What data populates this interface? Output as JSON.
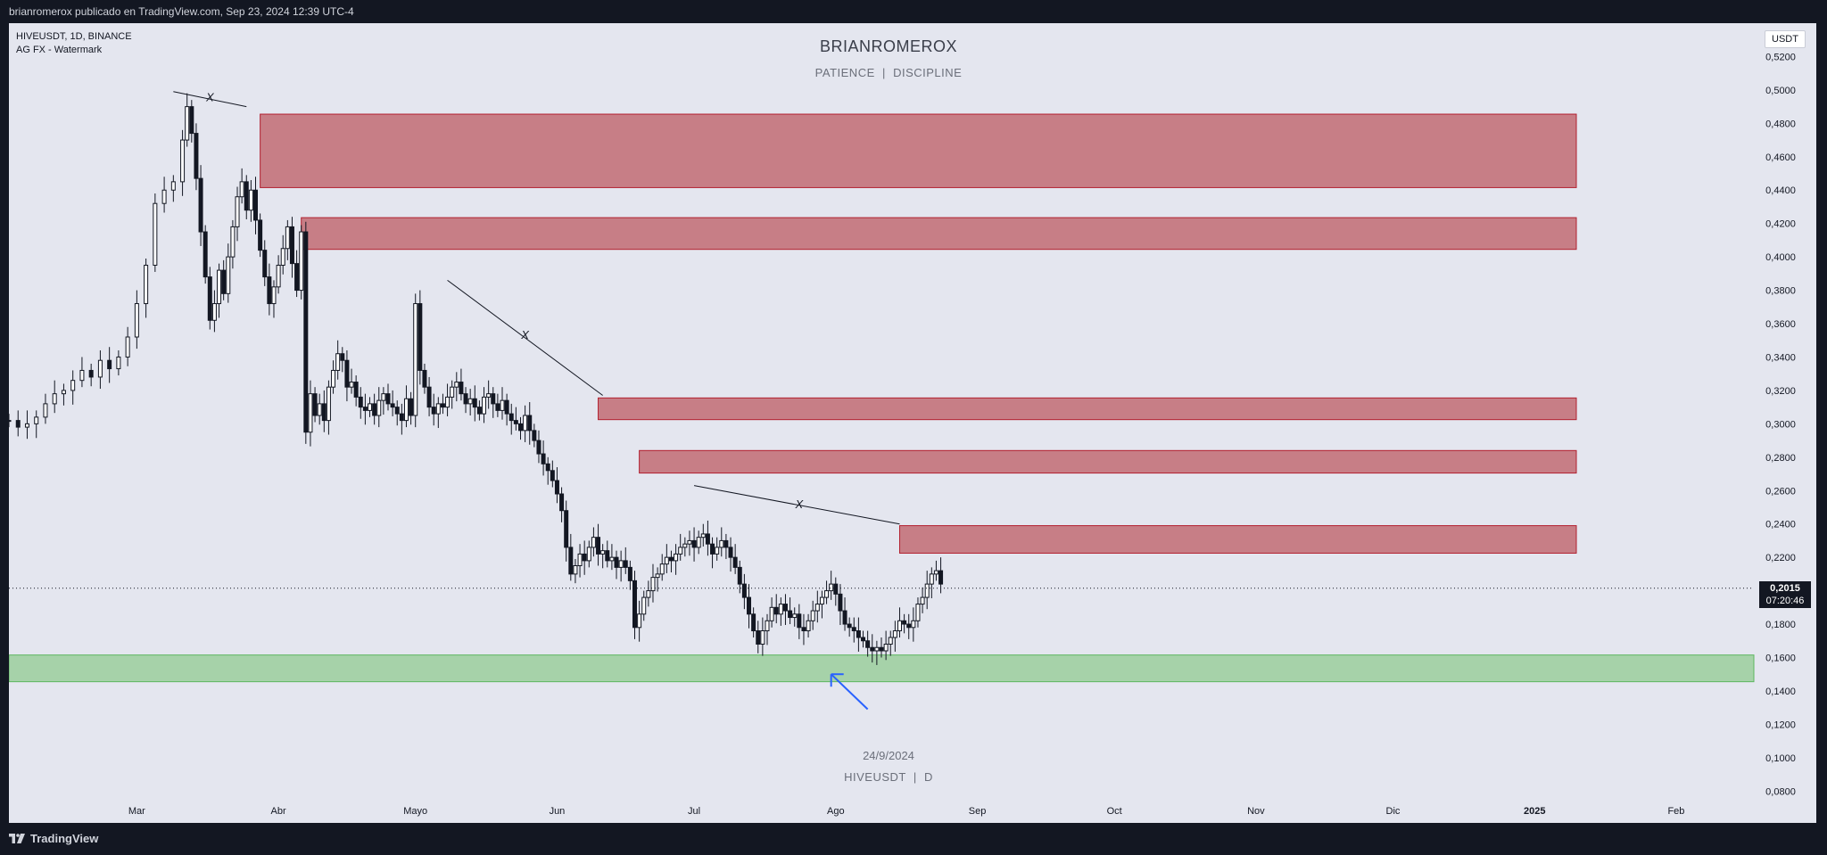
{
  "header": {
    "published_text": "brianromerox publicado en TradingView.com, Sep 23, 2024 12:39 UTC-4"
  },
  "symbol": {
    "line1": "HIVEUSDT, 1D, BINANCE",
    "line2": "AG FX - Watermark"
  },
  "watermark": {
    "title": "BRIANROMEROX",
    "subtitle": "PATIENCE  |  DISCIPLINE",
    "date": "24/9/2024",
    "symbol_line": "HIVEUSDT  |  D"
  },
  "currency": "USDT",
  "last_price": {
    "value": "0,2015",
    "countdown": "07:20:46",
    "price": 0.2015
  },
  "footer": {
    "brand": "TradingView"
  },
  "colors": {
    "resistance_fill": "#c77e86",
    "resistance_stroke": "#b2202f",
    "support_fill": "#a6d2a9",
    "support_stroke": "#5cb65f",
    "candle": "#131722",
    "arrow": "#2962ff"
  },
  "chart_data": {
    "type": "candlestick",
    "symbol": "HIVEUSDT",
    "timeframe": "1D",
    "exchange": "BINANCE",
    "ylim": [
      0.07,
      0.54
    ],
    "y_ticks": [
      {
        "v": 0.52,
        "label": "0,5200"
      },
      {
        "v": 0.5,
        "label": "0,5000"
      },
      {
        "v": 0.48,
        "label": "0,4800"
      },
      {
        "v": 0.46,
        "label": "0,4600"
      },
      {
        "v": 0.44,
        "label": "0,4400"
      },
      {
        "v": 0.42,
        "label": "0,4200"
      },
      {
        "v": 0.4,
        "label": "0,4000"
      },
      {
        "v": 0.38,
        "label": "0,3800"
      },
      {
        "v": 0.36,
        "label": "0,3600"
      },
      {
        "v": 0.34,
        "label": "0,3400"
      },
      {
        "v": 0.32,
        "label": "0,3200"
      },
      {
        "v": 0.3,
        "label": "0,3000"
      },
      {
        "v": 0.28,
        "label": "0,2800"
      },
      {
        "v": 0.26,
        "label": "0,2600"
      },
      {
        "v": 0.24,
        "label": "0,2400"
      },
      {
        "v": 0.22,
        "label": "0,2200"
      },
      {
        "v": 0.18,
        "label": "0,1800"
      },
      {
        "v": 0.16,
        "label": "0,1600"
      },
      {
        "v": 0.14,
        "label": "0,1400"
      },
      {
        "v": 0.12,
        "label": "0,1200"
      },
      {
        "v": 0.1,
        "label": "0,1000"
      },
      {
        "v": 0.08,
        "label": "0,0800"
      }
    ],
    "x_ticks": [
      {
        "day": 60,
        "label": "Mar"
      },
      {
        "day": 91,
        "label": "Abr"
      },
      {
        "day": 121,
        "label": "Mayo"
      },
      {
        "day": 152,
        "label": "Jun"
      },
      {
        "day": 182,
        "label": "Jul"
      },
      {
        "day": 213,
        "label": "Ago"
      },
      {
        "day": 244,
        "label": "Sep"
      },
      {
        "day": 274,
        "label": "Oct"
      },
      {
        "day": 305,
        "label": "Nov"
      },
      {
        "day": 335,
        "label": "Dic"
      },
      {
        "day": 366,
        "label": "2025"
      },
      {
        "day": 397,
        "label": "Feb"
      }
    ],
    "xlim": [
      32,
      414
    ],
    "closes": [
      [
        32,
        0.302
      ],
      [
        34,
        0.298
      ],
      [
        36,
        0.3
      ],
      [
        38,
        0.304
      ],
      [
        40,
        0.312
      ],
      [
        42,
        0.318
      ],
      [
        44,
        0.32
      ],
      [
        46,
        0.326
      ],
      [
        48,
        0.332
      ],
      [
        50,
        0.328
      ],
      [
        52,
        0.338
      ],
      [
        54,
        0.333
      ],
      [
        56,
        0.34
      ],
      [
        58,
        0.352
      ],
      [
        60,
        0.372
      ],
      [
        62,
        0.395
      ],
      [
        64,
        0.432
      ],
      [
        66,
        0.44
      ],
      [
        68,
        0.445
      ],
      [
        70,
        0.47
      ],
      [
        71,
        0.49
      ],
      [
        72,
        0.474
      ],
      [
        73,
        0.447
      ],
      [
        74,
        0.415
      ],
      [
        75,
        0.388
      ],
      [
        76,
        0.362
      ],
      [
        77,
        0.372
      ],
      [
        78,
        0.392
      ],
      [
        79,
        0.378
      ],
      [
        80,
        0.4
      ],
      [
        81,
        0.418
      ],
      [
        82,
        0.436
      ],
      [
        83,
        0.445
      ],
      [
        84,
        0.428
      ],
      [
        85,
        0.44
      ],
      [
        86,
        0.422
      ],
      [
        87,
        0.404
      ],
      [
        88,
        0.388
      ],
      [
        89,
        0.372
      ],
      [
        90,
        0.382
      ],
      [
        91,
        0.395
      ],
      [
        92,
        0.405
      ],
      [
        93,
        0.418
      ],
      [
        94,
        0.396
      ],
      [
        95,
        0.38
      ],
      [
        96,
        0.415
      ],
      [
        97,
        0.295
      ],
      [
        98,
        0.318
      ],
      [
        99,
        0.305
      ],
      [
        100,
        0.312
      ],
      [
        101,
        0.302
      ],
      [
        102,
        0.322
      ],
      [
        103,
        0.332
      ],
      [
        104,
        0.342
      ],
      [
        105,
        0.338
      ],
      [
        106,
        0.322
      ],
      [
        107,
        0.325
      ],
      [
        108,
        0.316
      ],
      [
        109,
        0.31
      ],
      [
        110,
        0.308
      ],
      [
        111,
        0.312
      ],
      [
        112,
        0.305
      ],
      [
        113,
        0.314
      ],
      [
        114,
        0.318
      ],
      [
        115,
        0.312
      ],
      [
        116,
        0.31
      ],
      [
        117,
        0.306
      ],
      [
        118,
        0.302
      ],
      [
        119,
        0.315
      ],
      [
        120,
        0.305
      ],
      [
        121,
        0.372
      ],
      [
        122,
        0.332
      ],
      [
        123,
        0.322
      ],
      [
        124,
        0.31
      ],
      [
        125,
        0.306
      ],
      [
        126,
        0.312
      ],
      [
        127,
        0.31
      ],
      [
        128,
        0.316
      ],
      [
        129,
        0.322
      ],
      [
        130,
        0.325
      ],
      [
        131,
        0.318
      ],
      [
        132,
        0.312
      ],
      [
        133,
        0.315
      ],
      [
        134,
        0.31
      ],
      [
        135,
        0.306
      ],
      [
        136,
        0.316
      ],
      [
        137,
        0.318
      ],
      [
        138,
        0.312
      ],
      [
        139,
        0.308
      ],
      [
        140,
        0.314
      ],
      [
        141,
        0.306
      ],
      [
        142,
        0.302
      ],
      [
        143,
        0.3
      ],
      [
        144,
        0.296
      ],
      [
        145,
        0.305
      ],
      [
        146,
        0.296
      ],
      [
        147,
        0.29
      ],
      [
        148,
        0.282
      ],
      [
        149,
        0.276
      ],
      [
        150,
        0.272
      ],
      [
        151,
        0.266
      ],
      [
        152,
        0.258
      ],
      [
        153,
        0.248
      ],
      [
        154,
        0.226
      ],
      [
        155,
        0.21
      ],
      [
        156,
        0.215
      ],
      [
        157,
        0.222
      ],
      [
        158,
        0.218
      ],
      [
        159,
        0.226
      ],
      [
        160,
        0.232
      ],
      [
        161,
        0.222
      ],
      [
        162,
        0.224
      ],
      [
        163,
        0.218
      ],
      [
        164,
        0.22
      ],
      [
        165,
        0.214
      ],
      [
        166,
        0.218
      ],
      [
        167,
        0.214
      ],
      [
        168,
        0.206
      ],
      [
        169,
        0.178
      ],
      [
        170,
        0.186
      ],
      [
        171,
        0.196
      ],
      [
        172,
        0.2
      ],
      [
        173,
        0.208
      ],
      [
        174,
        0.21
      ],
      [
        175,
        0.216
      ],
      [
        176,
        0.22
      ],
      [
        177,
        0.218
      ],
      [
        178,
        0.222
      ],
      [
        179,
        0.226
      ],
      [
        180,
        0.228
      ],
      [
        181,
        0.23
      ],
      [
        182,
        0.226
      ],
      [
        183,
        0.232
      ],
      [
        184,
        0.234
      ],
      [
        185,
        0.228
      ],
      [
        186,
        0.222
      ],
      [
        187,
        0.226
      ],
      [
        188,
        0.23
      ],
      [
        189,
        0.226
      ],
      [
        190,
        0.22
      ],
      [
        191,
        0.214
      ],
      [
        192,
        0.204
      ],
      [
        193,
        0.196
      ],
      [
        194,
        0.186
      ],
      [
        195,
        0.176
      ],
      [
        196,
        0.168
      ],
      [
        197,
        0.176
      ],
      [
        198,
        0.182
      ],
      [
        199,
        0.19
      ],
      [
        200,
        0.186
      ],
      [
        201,
        0.192
      ],
      [
        202,
        0.188
      ],
      [
        203,
        0.184
      ],
      [
        204,
        0.186
      ],
      [
        205,
        0.178
      ],
      [
        206,
        0.176
      ],
      [
        207,
        0.182
      ],
      [
        208,
        0.188
      ],
      [
        209,
        0.192
      ],
      [
        210,
        0.196
      ],
      [
        211,
        0.2
      ],
      [
        212,
        0.204
      ],
      [
        213,
        0.198
      ],
      [
        214,
        0.188
      ],
      [
        215,
        0.18
      ],
      [
        216,
        0.178
      ],
      [
        217,
        0.176
      ],
      [
        218,
        0.172
      ],
      [
        219,
        0.17
      ],
      [
        220,
        0.166
      ],
      [
        221,
        0.164
      ],
      [
        222,
        0.166
      ],
      [
        223,
        0.164
      ],
      [
        224,
        0.168
      ],
      [
        225,
        0.172
      ],
      [
        226,
        0.176
      ],
      [
        227,
        0.182
      ],
      [
        228,
        0.18
      ],
      [
        229,
        0.178
      ],
      [
        230,
        0.182
      ],
      [
        231,
        0.192
      ],
      [
        232,
        0.196
      ],
      [
        233,
        0.204
      ],
      [
        234,
        0.21
      ],
      [
        235,
        0.212
      ],
      [
        236,
        0.204
      ]
    ],
    "zones": [
      {
        "type": "resistance",
        "start_day": 87,
        "y1": 0.4415,
        "y2": 0.4855
      },
      {
        "type": "resistance",
        "start_day": 96,
        "y1": 0.4045,
        "y2": 0.4235
      },
      {
        "type": "resistance",
        "start_day": 161,
        "y1": 0.3025,
        "y2": 0.3155
      },
      {
        "type": "resistance",
        "start_day": 170,
        "y1": 0.2705,
        "y2": 0.284
      },
      {
        "type": "resistance",
        "start_day": 227,
        "y1": 0.2225,
        "y2": 0.239
      },
      {
        "type": "support",
        "start_day": 32,
        "y1": 0.1455,
        "y2": 0.1615
      }
    ],
    "trendlines": [
      {
        "d1": 68,
        "y1": 0.499,
        "d2": 84,
        "y2": 0.49
      },
      {
        "d1": 128,
        "y1": 0.386,
        "d2": 162,
        "y2": 0.317
      },
      {
        "d1": 182,
        "y1": 0.263,
        "d2": 227,
        "y2": 0.24
      }
    ],
    "annotations": [
      {
        "text": "X",
        "day": 76,
        "y": 0.4955
      },
      {
        "text": "X",
        "day": 145,
        "y": 0.353
      },
      {
        "text": "X",
        "day": 205,
        "y": 0.2515
      }
    ],
    "arrow": {
      "from_day": 220,
      "from_y": 0.129,
      "to_day": 212,
      "to_y": 0.15
    }
  }
}
